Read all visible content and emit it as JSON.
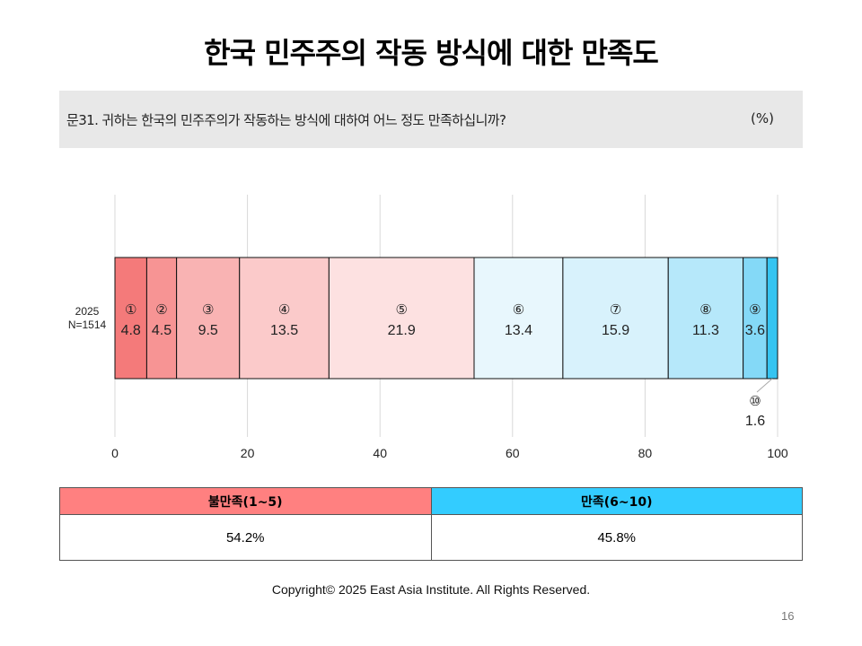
{
  "title": "한국 민주주의 작동 방식에 대한 만족도",
  "question": {
    "text": "문31. 귀하는 한국의 민주주의가 작동하는 방식에 대하여 어느 정도 만족하십니까?",
    "unit": "(%)"
  },
  "chart_data": {
    "type": "bar",
    "orientation": "horizontal",
    "stacked": true,
    "categories": [
      "2025\nN=1514"
    ],
    "category_label_lines": [
      "2025",
      "N=1514"
    ],
    "series": [
      {
        "label": "①",
        "values": [
          4.8
        ],
        "color": "#f47a7a"
      },
      {
        "label": "②",
        "values": [
          4.5
        ],
        "color": "#f79494"
      },
      {
        "label": "③",
        "values": [
          9.5
        ],
        "color": "#f9b3b3"
      },
      {
        "label": "④",
        "values": [
          13.5
        ],
        "color": "#fbcaca"
      },
      {
        "label": "⑤",
        "values": [
          21.9
        ],
        "color": "#fde1e1"
      },
      {
        "label": "⑥",
        "values": [
          13.4
        ],
        "color": "#e8f7fd"
      },
      {
        "label": "⑦",
        "values": [
          15.9
        ],
        "color": "#d8f2fc"
      },
      {
        "label": "⑧",
        "values": [
          11.3
        ],
        "color": "#b6e8fa"
      },
      {
        "label": "⑨",
        "values": [
          3.6
        ],
        "color": "#84d9f7"
      },
      {
        "label": "⑩",
        "values": [
          1.6
        ],
        "color": "#35c4f1"
      }
    ],
    "xlim": [
      0,
      100
    ],
    "xticks": [
      0,
      20,
      40,
      60,
      80,
      100
    ],
    "grid": true,
    "legend": "none"
  },
  "summary": {
    "headers": [
      {
        "label": "불만족(1~5)",
        "color": "#ff8080"
      },
      {
        "label": "만족(6~10)",
        "color": "#33ccff"
      }
    ],
    "values": [
      "54.2%",
      "45.8%"
    ]
  },
  "footer": "Copyright© 2025 East Asia Institute. All Rights Reserved.",
  "page_number": "16"
}
